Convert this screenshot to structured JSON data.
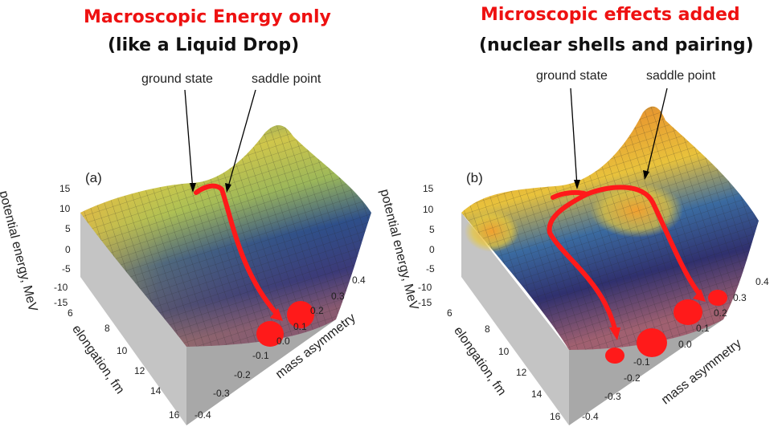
{
  "left": {
    "title_red": "Macroscopic Energy only",
    "title_black": "(like a Liquid Drop)",
    "panel": "(a)",
    "label_ground": "ground state",
    "label_saddle": "saddle point",
    "axis_z": "potential energy, MeV",
    "axis_y": "elongation, fm",
    "axis_x": "mass asymmetry",
    "z_ticks": [
      "15",
      "10",
      "5",
      "0",
      "-5",
      "-10",
      "-15"
    ],
    "y_ticks": [
      "6",
      "8",
      "10",
      "12",
      "14",
      "16"
    ],
    "x_ticks": [
      "0.4",
      "0.3",
      "0.2",
      "0.1",
      "0.0",
      "-0.1",
      "-0.2",
      "-0.3",
      "-0.4"
    ]
  },
  "right": {
    "title_red": "Microscopic effects added",
    "title_black": "(nuclear shells and pairing)",
    "panel": "(b)",
    "label_ground": "ground state",
    "label_saddle": "saddle point",
    "axis_z": "potential energy, MeV",
    "axis_y": "elongation, fm",
    "axis_x": "mass asymmetry",
    "z_ticks": [
      "15",
      "10",
      "5",
      "0",
      "-5",
      "-10",
      "-15"
    ],
    "y_ticks": [
      "6",
      "8",
      "10",
      "12",
      "14",
      "16"
    ],
    "x_ticks": [
      "0.4",
      "0.3",
      "0.2",
      "0.1",
      "0.0",
      "-0.1",
      "-0.2",
      "-0.3",
      "-0.4"
    ]
  },
  "colors": {
    "title_red": "#ee1111",
    "path_red": "#ff1a1a",
    "surface_high": "#e8962c",
    "surface_mid": "#c8c850",
    "surface_low": "#2c3c7c",
    "base_grey": "#bdbdbd"
  }
}
